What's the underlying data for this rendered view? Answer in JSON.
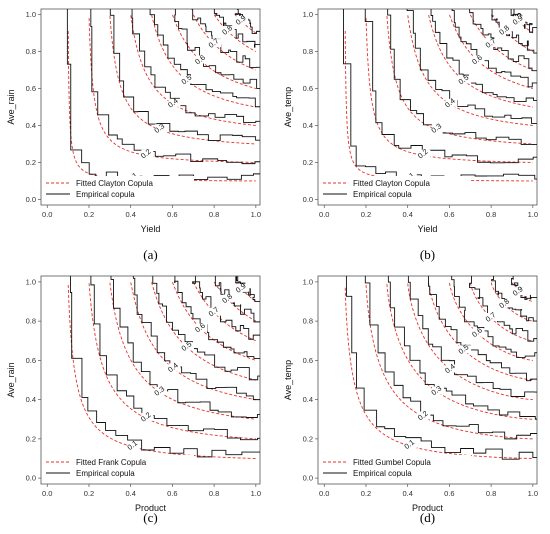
{
  "figure": {
    "panels": [
      {
        "caption": "(a)",
        "xlabel": "Yield",
        "ylabel": "Ave_rain",
        "legend": {
          "fitted": "Fitted Clayton Copula",
          "empirical": "Empirical copula"
        }
      },
      {
        "caption": "(b)",
        "xlabel": "Yield",
        "ylabel": "Ave_temp",
        "legend": {
          "fitted": "Fitted Clayton Copula",
          "empirical": "Empirical copula"
        }
      },
      {
        "caption": "(c)",
        "xlabel": "Product",
        "ylabel": "Ave_rain",
        "legend": {
          "fitted": "Fitted Frank Copula",
          "empirical": "Empirical copula"
        }
      },
      {
        "caption": "(d)",
        "xlabel": "Product",
        "ylabel": "Ave_temp",
        "legend": {
          "fitted": "Fitted Gumbel Copula",
          "empirical": "Empirical copula"
        }
      }
    ],
    "colors": {
      "fitted": "#e8302a",
      "empirical": "#111111",
      "frame": "#555555"
    }
  },
  "chart_data": [
    {
      "type": "line",
      "subtype": "contour",
      "xlabel": "Yield",
      "ylabel": "Ave_rain",
      "xlim": [
        0,
        1
      ],
      "ylim": [
        0,
        1
      ],
      "x_ticks": [
        "0.0",
        "0.2",
        "0.4",
        "0.6",
        "0.8",
        "1.0"
      ],
      "y_ticks": [
        "0.0",
        "0.2",
        "0.4",
        "0.6",
        "0.8",
        "1.0"
      ],
      "contour_levels": [
        "0.1",
        "0.2",
        "0.3",
        "0.4",
        "0.5",
        "0.6",
        "0.7",
        "0.8",
        "0.9"
      ],
      "series": [
        {
          "name": "Fitted Clayton Copula",
          "style": "dashed"
        },
        {
          "name": "Empirical copula",
          "style": "solid"
        }
      ],
      "legend_position": "bottom-left",
      "grid": false
    },
    {
      "type": "line",
      "subtype": "contour",
      "xlabel": "Yield",
      "ylabel": "Ave_temp",
      "xlim": [
        0,
        1
      ],
      "ylim": [
        0,
        1
      ],
      "x_ticks": [
        "0.0",
        "0.2",
        "0.4",
        "0.6",
        "0.8",
        "1.0"
      ],
      "y_ticks": [
        "0.0",
        "0.2",
        "0.4",
        "0.6",
        "0.8",
        "1.0"
      ],
      "contour_levels": [
        "0.1",
        "0.2",
        "0.3",
        "0.4",
        "0.5",
        "0.6",
        "0.7",
        "0.8",
        "0.9"
      ],
      "series": [
        {
          "name": "Fitted Clayton Copula",
          "style": "dashed"
        },
        {
          "name": "Empirical copula",
          "style": "solid"
        }
      ],
      "legend_position": "bottom-left",
      "grid": false
    },
    {
      "type": "line",
      "subtype": "contour",
      "xlabel": "Product",
      "ylabel": "Ave_rain",
      "xlim": [
        0,
        1
      ],
      "ylim": [
        0,
        1
      ],
      "x_ticks": [
        "0.0",
        "0.2",
        "0.4",
        "0.6",
        "0.8",
        "1.0"
      ],
      "y_ticks": [
        "0.0",
        "0.2",
        "0.4",
        "0.6",
        "0.8",
        "1.0"
      ],
      "contour_levels": [
        "0.1",
        "0.2",
        "0.3",
        "0.4",
        "0.5",
        "0.6",
        "0.7",
        "0.8",
        "0.9"
      ],
      "series": [
        {
          "name": "Fitted Frank Copula",
          "style": "dashed"
        },
        {
          "name": "Empirical copula",
          "style": "solid"
        }
      ],
      "legend_position": "bottom-left",
      "grid": false
    },
    {
      "type": "line",
      "subtype": "contour",
      "xlabel": "Product",
      "ylabel": "Ave_temp",
      "xlim": [
        0,
        1
      ],
      "ylim": [
        0,
        1
      ],
      "x_ticks": [
        "0.0",
        "0.2",
        "0.4",
        "0.6",
        "0.8",
        "1.0"
      ],
      "y_ticks": [
        "0.0",
        "0.2",
        "0.4",
        "0.6",
        "0.8",
        "1.0"
      ],
      "contour_levels": [
        "0.1",
        "0.2",
        "0.3",
        "0.4",
        "0.5",
        "0.6",
        "0.7",
        "0.8",
        "0.9"
      ],
      "series": [
        {
          "name": "Fitted Gumbel Copula",
          "style": "dashed"
        },
        {
          "name": "Empirical copula",
          "style": "solid"
        }
      ],
      "legend_position": "bottom-left",
      "grid": false
    }
  ]
}
